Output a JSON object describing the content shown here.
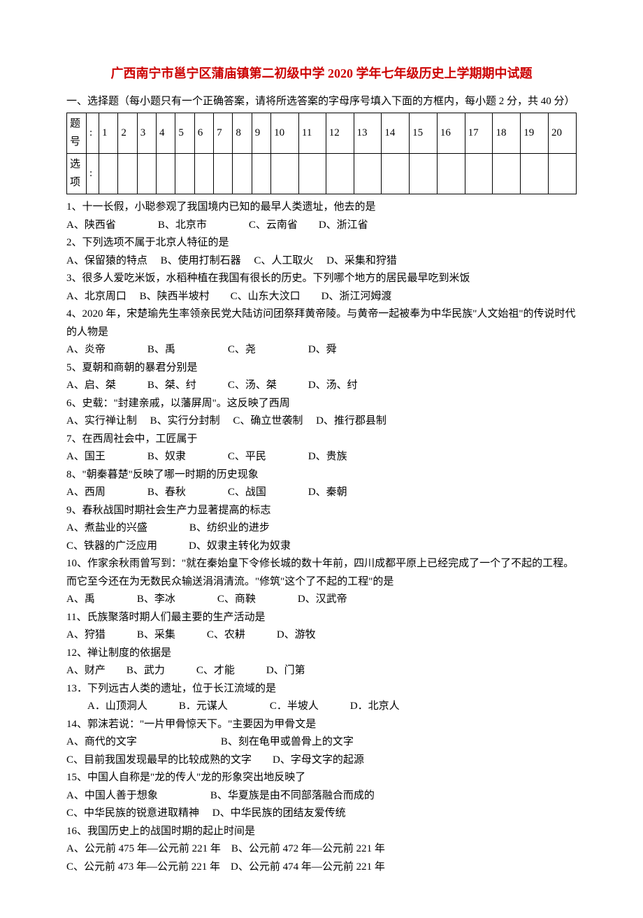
{
  "title": "广西南宁市邕宁区蒲庙镇第二初级中学 2020 学年七年级历史上学期期中试题",
  "section_header": "一、选择题（每小题只有一个正确答案，请将所选答案的字母序号填入下面的方框内，每小题 2 分，共 40 分）",
  "grid": {
    "row1_label": "题号",
    "row2_label": "选项",
    "colon": ":",
    "numbers": [
      "1",
      "2",
      "3",
      "4",
      "5",
      "6",
      "7",
      "8",
      "9",
      "10",
      "11",
      "12",
      "13",
      "14",
      "15",
      "16",
      "17",
      "18",
      "19",
      "20"
    ]
  },
  "questions": [
    {
      "q": "1、十一长假，小聪参观了我国境内已知的最早人类遗址，他去的是",
      "opts": "A、陕西省    B、北京市    C、云南省  D、浙江省"
    },
    {
      "q": "2、下列选项不属于北京人特征的是",
      "opts": "A、保留猿的特点  B、使用打制石器  C、人工取火  D、采集和狩猎"
    },
    {
      "q": "3、很多人爱吃米饭，水稻种植在我国有很长的历史。下列哪个地方的居民最早吃到米饭",
      "opts": "A、北京周口  B、陕西半坡村  C、山东大汶口  D、浙江河姆渡"
    },
    {
      "q": "4、2020 年，宋楚瑜先生率领亲民党大陆访问团祭拜黄帝陵。与黄帝一起被奉为中华民族\"人文始祖\"的传说时代的人物是",
      "opts": "A、炎帝    B、禹     C、尧     D、舜"
    },
    {
      "q": "5、夏朝和商朝的暴君分别是",
      "opts": "A、启、桀   B、桀、纣   C、汤、桀   D、汤、纣"
    },
    {
      "q": "6、史载：\"封建亲戚，以藩屏周\"。这反映了西周",
      "opts": "A、实行禅让制  B、实行分封制  C、确立世袭制  D、推行郡县制"
    },
    {
      "q": "7、在西周社会中，工匠属于",
      "opts": "A、国王    B、奴隶    C、平民    D、贵族"
    },
    {
      "q": "8、\"朝秦暮楚\"反映了哪一时期的历史现象",
      "opts": "A、西周    B、春秋    C、战国    D、秦朝"
    },
    {
      "q": "9、春秋战国时期社会生产力显著提高的标志",
      "opts_line1": "A、煮盐业的兴盛    B、纺织业的进步",
      "opts_line2": "C、铁器的广泛应用   D、奴隶主转化为奴隶"
    },
    {
      "q": "10、作家余秋雨曾写到：\"就在秦始皇下令修长城的数十年前，四川成都平原上已经完成了一个了不起的工程。而它至今还在为无数民众输送涓涓清流。\"修筑\"这个了不起的工程\"的是",
      "opts": "A、禹    B、李冰    C、商鞅    D、汉武帝"
    },
    {
      "q": "11、氏族聚落时期人们最主要的生产活动是",
      "opts": "A、狩猎   B、采集   C、农耕   D、游牧"
    },
    {
      "q": "12、禅让制度的依据是",
      "opts": "A、财产  B、武力   C、才能   D、门第"
    },
    {
      "q": "13．下列远古人类的遗址，位于长江流域的是",
      "opts": "  A．山顶洞人   B．元谋人    C．半坡人   D．北京人",
      "indent": true
    },
    {
      "q": "14、郭沫若说：\"一片甲骨惊天下。\"主要因为甲骨文是",
      "opts_line1": "A、商代的文字        B、刻在龟甲或兽骨上的文字",
      "opts_line2": "C、目前我国发现最早的比较成熟的文字  D、字母文字的起源"
    },
    {
      "q": "15、中国人自称是\"龙的传人\"龙的形象突出地反映了",
      "opts_line1": "A、中国人善于想象     B、华夏族是由不同部落融合而成的",
      "opts_line2": "C、中华民族的锐意进取精神  D、中华民族的团结友爱传统"
    },
    {
      "q": "16、我国历史上的战国时期的起止时间是",
      "opts_line1": "A、公元前 475 年—公元前 221 年 B、公元前 472 年—公元前 221 年",
      "opts_line2": "C、公元前 473 年—公元前 221 年 D、公元前 474 年—公元前 221 年"
    }
  ]
}
